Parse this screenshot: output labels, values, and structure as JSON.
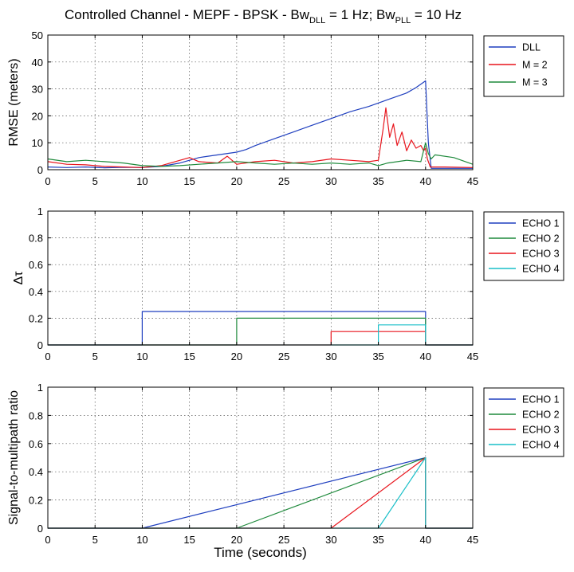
{
  "chart_data": [
    {
      "type": "line",
      "title_parts": {
        "prefix": "Controlled Channel - MEPF - BPSK - Bw",
        "sub1": "DLL",
        "mid": " = 1 Hz; Bw",
        "sub2": "PLL",
        "suffix": " = 10 Hz"
      },
      "xlabel": "",
      "ylabel": "RMSE (meters)",
      "xlim": [
        0,
        45
      ],
      "ylim": [
        0,
        50
      ],
      "xticks": [
        0,
        5,
        10,
        15,
        20,
        25,
        30,
        35,
        40,
        45
      ],
      "yticks": [
        0,
        10,
        20,
        30,
        40,
        50
      ],
      "grid": true,
      "legend_position": "outside-right",
      "series": [
        {
          "name": "DLL",
          "color": "#1f3fbf",
          "x": [
            0,
            2,
            4,
            6,
            8,
            10,
            12,
            14,
            16,
            18,
            20,
            21,
            22,
            24,
            26,
            28,
            30,
            32,
            34,
            36,
            38,
            39,
            40,
            40.3,
            40.6,
            45
          ],
          "y": [
            1,
            0.8,
            1,
            0.7,
            0.9,
            0.8,
            1.2,
            2.5,
            4.5,
            5.5,
            6.5,
            7.5,
            9,
            11.5,
            14,
            16.5,
            19,
            21.5,
            23.5,
            26,
            28.5,
            30.5,
            33,
            10,
            0.5,
            0.5
          ]
        },
        {
          "name": "M = 2",
          "color": "#e8141c",
          "x": [
            0,
            2,
            4,
            6,
            8,
            10,
            12,
            14,
            15,
            16,
            18,
            19,
            20,
            22,
            24,
            26,
            28,
            30,
            32,
            34,
            35,
            35.5,
            35.8,
            36.2,
            36.6,
            37,
            37.5,
            38,
            38.5,
            39,
            39.5,
            39.8,
            40,
            40.2,
            40.5,
            42,
            45
          ],
          "y": [
            3,
            2,
            1.8,
            1.2,
            1,
            0.8,
            1.5,
            3.5,
            4.5,
            3,
            2.5,
            5,
            2,
            3,
            3.5,
            2.5,
            3,
            4,
            3.5,
            3,
            3.5,
            15,
            23,
            12,
            17,
            9,
            14,
            7,
            11,
            8,
            9,
            7,
            8,
            4,
            1,
            1,
            0.8
          ]
        },
        {
          "name": "M = 3",
          "color": "#1f8a3c",
          "x": [
            0,
            2,
            4,
            6,
            8,
            10,
            12,
            14,
            16,
            18,
            20,
            22,
            24,
            26,
            28,
            30,
            32,
            34,
            35,
            36,
            38,
            39.5,
            40,
            40.3,
            40.6,
            41,
            43,
            45
          ],
          "y": [
            4,
            3,
            3.5,
            3,
            2.5,
            1.5,
            1.2,
            1.5,
            2,
            2.5,
            3,
            2.5,
            2,
            2.5,
            2,
            2.5,
            2,
            2.5,
            1.5,
            2.5,
            3.5,
            3,
            10,
            6,
            4,
            5.5,
            4.5,
            2
          ]
        }
      ]
    },
    {
      "type": "line",
      "title": "",
      "xlabel": "",
      "ylabel": "Δτ",
      "xlim": [
        0,
        45
      ],
      "ylim": [
        0,
        1
      ],
      "xticks": [
        0,
        5,
        10,
        15,
        20,
        25,
        30,
        35,
        40,
        45
      ],
      "yticks": [
        0,
        0.2,
        0.4,
        0.6,
        0.8,
        1
      ],
      "grid": true,
      "legend_position": "outside-right",
      "series": [
        {
          "name": "ECHO 1",
          "color": "#1f3fbf",
          "x": [
            0,
            10,
            10,
            40,
            40,
            45
          ],
          "y": [
            0,
            0,
            0.25,
            0.25,
            0,
            0
          ]
        },
        {
          "name": "ECHO 2",
          "color": "#1f8a3c",
          "x": [
            0,
            20,
            20,
            40,
            40,
            45
          ],
          "y": [
            0,
            0,
            0.2,
            0.2,
            0,
            0
          ]
        },
        {
          "name": "ECHO 3",
          "color": "#e8141c",
          "x": [
            0,
            30,
            30,
            40,
            40,
            45
          ],
          "y": [
            0,
            0,
            0.1,
            0.1,
            0,
            0
          ]
        },
        {
          "name": "ECHO 4",
          "color": "#18bfc8",
          "x": [
            0,
            35,
            35,
            40,
            40,
            45
          ],
          "y": [
            0,
            0,
            0.15,
            0.15,
            0,
            0
          ]
        }
      ]
    },
    {
      "type": "line",
      "title": "",
      "xlabel": "Time (seconds)",
      "ylabel": "Signal-to-multipath ratio",
      "xlim": [
        0,
        45
      ],
      "ylim": [
        0,
        1
      ],
      "xticks": [
        0,
        5,
        10,
        15,
        20,
        25,
        30,
        35,
        40,
        45
      ],
      "yticks": [
        0,
        0.2,
        0.4,
        0.6,
        0.8,
        1
      ],
      "grid": true,
      "legend_position": "outside-right",
      "series": [
        {
          "name": "ECHO 1",
          "color": "#1f3fbf",
          "x": [
            0,
            10,
            40,
            40,
            45
          ],
          "y": [
            0,
            0,
            0.5,
            0,
            0
          ]
        },
        {
          "name": "ECHO 2",
          "color": "#1f8a3c",
          "x": [
            0,
            20,
            40,
            40,
            45
          ],
          "y": [
            0,
            0,
            0.5,
            0,
            0
          ]
        },
        {
          "name": "ECHO 3",
          "color": "#e8141c",
          "x": [
            0,
            30,
            40,
            40,
            45
          ],
          "y": [
            0,
            0,
            0.5,
            0,
            0
          ]
        },
        {
          "name": "ECHO 4",
          "color": "#18bfc8",
          "x": [
            0,
            35,
            40,
            40,
            45
          ],
          "y": [
            0,
            0,
            0.5,
            0,
            0
          ]
        }
      ]
    }
  ]
}
